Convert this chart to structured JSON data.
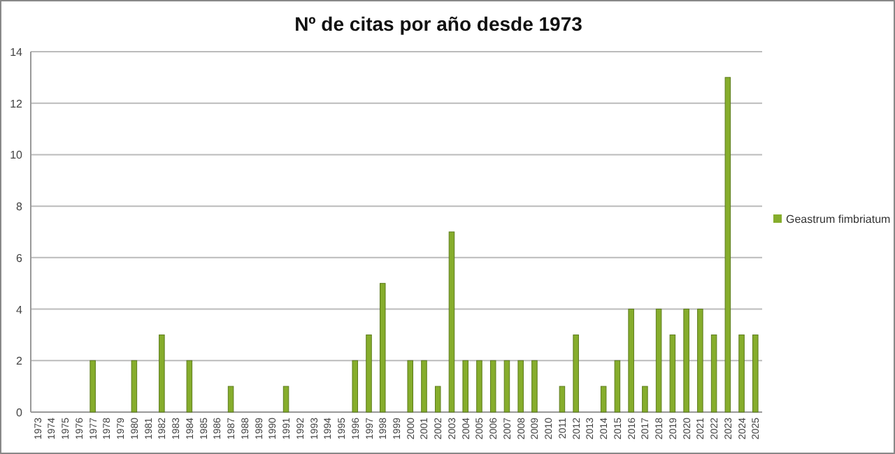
{
  "chart_data": {
    "type": "bar",
    "title": "Nº de citas por año desde 1973",
    "categories": [
      "1973",
      "1974",
      "1975",
      "1976",
      "1977",
      "1978",
      "1979",
      "1980",
      "1981",
      "1982",
      "1983",
      "1984",
      "1985",
      "1986",
      "1987",
      "1988",
      "1989",
      "1990",
      "1991",
      "1992",
      "1993",
      "1994",
      "1995",
      "1996",
      "1997",
      "1998",
      "1999",
      "2000",
      "2001",
      "2002",
      "2003",
      "2004",
      "2005",
      "2006",
      "2007",
      "2008",
      "2009",
      "2010",
      "2011",
      "2012",
      "2013",
      "2014",
      "2015",
      "2016",
      "2017",
      "2018",
      "2019",
      "2020",
      "2021",
      "2022",
      "2023",
      "2024",
      "2025"
    ],
    "series": [
      {
        "name": "Geastrum fimbriatum",
        "color": "#86ad2c",
        "values": [
          0,
          0,
          0,
          0,
          2,
          0,
          0,
          2,
          0,
          3,
          0,
          2,
          0,
          0,
          1,
          0,
          0,
          0,
          1,
          0,
          0,
          0,
          0,
          2,
          3,
          5,
          0,
          2,
          2,
          1,
          7,
          2,
          2,
          2,
          2,
          2,
          2,
          0,
          1,
          3,
          0,
          1,
          2,
          4,
          1,
          4,
          3,
          4,
          4,
          3,
          13,
          3,
          3
        ]
      }
    ],
    "ylim": [
      0,
      14
    ],
    "yticks": [
      0,
      2,
      4,
      6,
      8,
      10,
      12,
      14
    ],
    "grid": "y",
    "legend": "right"
  }
}
